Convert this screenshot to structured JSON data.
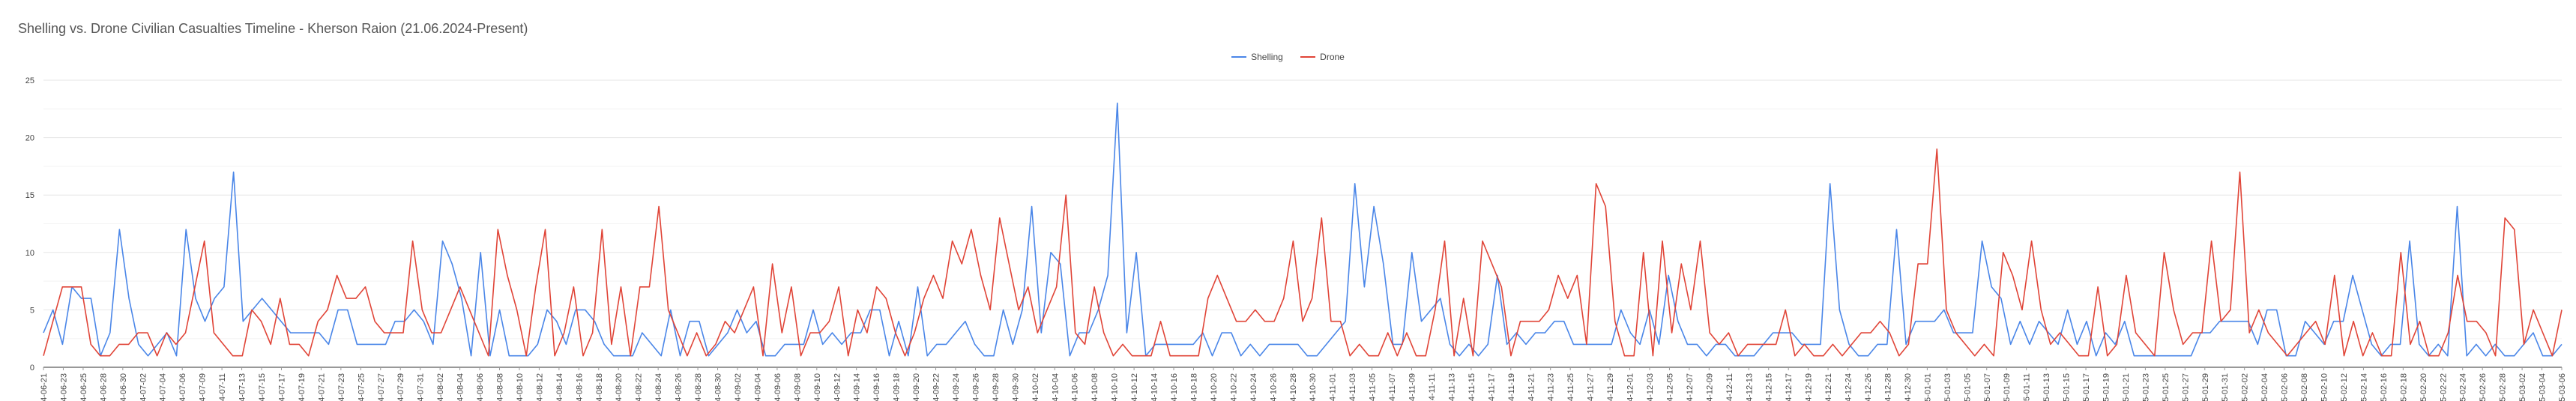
{
  "chart_data": {
    "type": "line",
    "title": "Shelling vs. Drone Civilian Casualties Timeline - Kherson Raion (21.06.2024-Present)",
    "xlabel": "",
    "ylabel": "",
    "ylim": [
      0,
      25
    ],
    "yticks": [
      0,
      5,
      10,
      15,
      20,
      25
    ],
    "grid": true,
    "legend_position": "top-center",
    "x_tick_labels": [
      "2024-06-21",
      "2024-06-23",
      "2024-06-25",
      "2024-06-28",
      "2024-06-30",
      "2024-07-02",
      "2024-07-04",
      "2024-07-06",
      "2024-07-09",
      "2024-07-11",
      "2024-07-13",
      "2024-07-15",
      "2024-07-17",
      "2024-07-19",
      "2024-07-21",
      "2024-07-23",
      "2024-07-25",
      "2024-07-27",
      "2024-07-29",
      "2024-07-31",
      "2024-08-02",
      "2024-08-04",
      "2024-08-06",
      "2024-08-08",
      "2024-08-10",
      "2024-08-12",
      "2024-08-14",
      "2024-08-16",
      "2024-08-18",
      "2024-08-20",
      "2024-08-22",
      "2024-08-24",
      "2024-08-26",
      "2024-08-28",
      "2024-08-30",
      "2024-09-02",
      "2024-09-04",
      "2024-09-06",
      "2024-09-08",
      "2024-09-10",
      "2024-09-12",
      "2024-09-14",
      "2024-09-16",
      "2024-09-18",
      "2024-09-20",
      "2024-09-22",
      "2024-09-24",
      "2024-09-26",
      "2024-09-28",
      "2024-09-30",
      "2024-10-02",
      "2024-10-04",
      "2024-10-06",
      "2024-10-08",
      "2024-10-10",
      "2024-10-12",
      "2024-10-14",
      "2024-10-16",
      "2024-10-18",
      "2024-10-20",
      "2024-10-22",
      "2024-10-24",
      "2024-10-26",
      "2024-10-28",
      "2024-10-30",
      "2024-11-01",
      "2024-11-03",
      "2024-11-05",
      "2024-11-07",
      "2024-11-09",
      "2024-11-11",
      "2024-11-13",
      "2024-11-15",
      "2024-11-17",
      "2024-11-19",
      "2024-11-21",
      "2024-11-23",
      "2024-11-25",
      "2024-11-27",
      "2024-11-29",
      "2024-12-01",
      "2024-12-03",
      "2024-12-05",
      "2024-12-07",
      "2024-12-09",
      "2024-12-11",
      "2024-12-13",
      "2024-12-15",
      "2024-12-17",
      "2024-12-19",
      "2024-12-21",
      "2024-12-24",
      "2024-12-26",
      "2024-12-28",
      "2024-12-30",
      "2025-01-01",
      "2025-01-03",
      "2025-01-05",
      "2025-01-07",
      "2025-01-09",
      "2025-01-11",
      "2025-01-13",
      "2025-01-15",
      "2025-01-17",
      "2025-01-19",
      "2025-01-21",
      "2025-01-23",
      "2025-01-25",
      "2025-01-27",
      "2025-01-29",
      "2025-01-31",
      "2025-02-02",
      "2025-02-04",
      "2025-02-06",
      "2025-02-08",
      "2025-02-10",
      "2025-02-12",
      "2025-02-14",
      "2025-02-16",
      "2025-02-18",
      "2025-02-20",
      "2025-02-22",
      "2025-02-24",
      "2025-02-26",
      "2025-02-28",
      "2025-03-02",
      "2025-03-04",
      "2025-03-06"
    ],
    "series": [
      {
        "name": "Shelling",
        "color": "#4a86e8",
        "values": [
          3,
          5,
          2,
          7,
          6,
          6,
          1,
          3,
          12,
          6,
          2,
          1,
          2,
          3,
          1,
          12,
          6,
          4,
          6,
          7,
          17,
          4,
          5,
          6,
          5,
          4,
          3,
          3,
          3,
          3,
          2,
          5,
          5,
          2,
          2,
          2,
          2,
          4,
          4,
          5,
          4,
          2,
          11,
          9,
          6,
          1,
          10,
          1,
          5,
          1,
          1,
          1,
          2,
          5,
          4,
          2,
          5,
          5,
          4,
          2,
          1,
          1,
          1,
          3,
          2,
          1,
          5,
          1,
          4,
          4,
          1,
          2,
          3,
          5,
          3,
          4,
          1,
          1,
          2,
          2,
          2,
          5,
          2,
          3,
          2,
          3,
          3,
          5,
          5,
          1,
          4,
          1,
          7,
          1,
          2,
          2,
          3,
          4,
          2,
          1,
          1,
          5,
          2,
          5,
          14,
          3,
          10,
          9,
          1,
          3,
          3,
          5,
          8,
          23,
          3,
          10,
          1,
          2,
          2,
          2,
          2,
          2,
          3,
          1,
          3,
          3,
          1,
          2,
          1,
          2,
          2,
          2,
          2,
          1,
          1,
          2,
          3,
          4,
          16,
          7,
          14,
          9,
          2,
          2,
          10,
          4,
          5,
          6,
          2,
          1,
          2,
          1,
          2,
          8,
          2,
          3,
          2,
          3,
          3,
          4,
          4,
          2,
          2,
          2,
          2,
          2,
          5,
          3,
          2,
          5,
          2,
          8,
          4,
          2,
          2,
          1,
          2,
          2,
          1,
          1,
          1,
          2,
          3,
          3,
          3,
          2,
          2,
          2,
          16,
          5,
          2,
          1,
          1,
          2,
          2,
          12,
          2,
          4,
          4,
          4,
          5,
          3,
          3,
          3,
          11,
          7,
          6,
          2,
          4,
          2,
          4,
          3,
          2,
          5,
          2,
          4,
          1,
          3,
          2,
          4,
          1,
          1,
          1,
          1,
          1,
          1,
          1,
          3,
          3,
          4,
          4,
          4,
          4,
          2,
          5,
          5,
          1,
          1,
          4,
          3,
          2,
          4,
          4,
          8,
          5,
          2,
          1,
          2,
          2,
          11,
          2,
          1,
          2,
          1,
          14,
          1,
          2,
          1,
          2,
          1,
          1,
          2,
          3,
          1,
          1,
          2
        ],
        "values_note": ""
      },
      {
        "name": "Drone",
        "color": "#e04437",
        "values": [
          1,
          4,
          7,
          7,
          7,
          2,
          1,
          1,
          2,
          2,
          3,
          3,
          1,
          3,
          2,
          3,
          7,
          11,
          3,
          2,
          1,
          1,
          5,
          4,
          2,
          6,
          2,
          2,
          1,
          4,
          5,
          8,
          6,
          6,
          7,
          4,
          3,
          3,
          3,
          11,
          5,
          3,
          3,
          5,
          7,
          5,
          3,
          1,
          12,
          8,
          5,
          1,
          7,
          12,
          1,
          3,
          7,
          1,
          3,
          12,
          2,
          7,
          1,
          7,
          7,
          14,
          5,
          3,
          1,
          3,
          1,
          2,
          4,
          3,
          5,
          7,
          1,
          9,
          3,
          7,
          1,
          3,
          3,
          4,
          7,
          1,
          5,
          3,
          7,
          6,
          3,
          1,
          3,
          6,
          8,
          6,
          11,
          9,
          12,
          8,
          5,
          13,
          9,
          5,
          7,
          3,
          5,
          7,
          15,
          3,
          2,
          7,
          3,
          1,
          2,
          1,
          1,
          1,
          4,
          1,
          1,
          1,
          1,
          6,
          8,
          6,
          4,
          4,
          5,
          4,
          4,
          6,
          11,
          4,
          6,
          13,
          4,
          4,
          1,
          2,
          1,
          1,
          3,
          1,
          3,
          1,
          1,
          5,
          11,
          1,
          6,
          1,
          11,
          9,
          7,
          1,
          4,
          4,
          4,
          5,
          8,
          6,
          8,
          2,
          16,
          14,
          4,
          1,
          1,
          10,
          1,
          11,
          3,
          9,
          5,
          11,
          3,
          2,
          3,
          1,
          2,
          2,
          2,
          2,
          5,
          1,
          2,
          1,
          1,
          2,
          1,
          2,
          3,
          3,
          4,
          3,
          1,
          2,
          9,
          9,
          19,
          5,
          3,
          2,
          1,
          2,
          1,
          10,
          8,
          5,
          11,
          5,
          2,
          3,
          2,
          1,
          1,
          7,
          1,
          2,
          8,
          3,
          2,
          1,
          10,
          5,
          2,
          3,
          3,
          11,
          4,
          5,
          17,
          3,
          5,
          3,
          2,
          1,
          2,
          3,
          4,
          2,
          8,
          1,
          4,
          1,
          3,
          1,
          1,
          10,
          2,
          4,
          1,
          1,
          3,
          8,
          4,
          4,
          3,
          1,
          13,
          12,
          2,
          5,
          3,
          1,
          5
        ]
      }
    ]
  },
  "legend": {
    "items": [
      {
        "label": "Shelling",
        "color": "#4a86e8"
      },
      {
        "label": "Drone",
        "color": "#e04437"
      }
    ]
  }
}
